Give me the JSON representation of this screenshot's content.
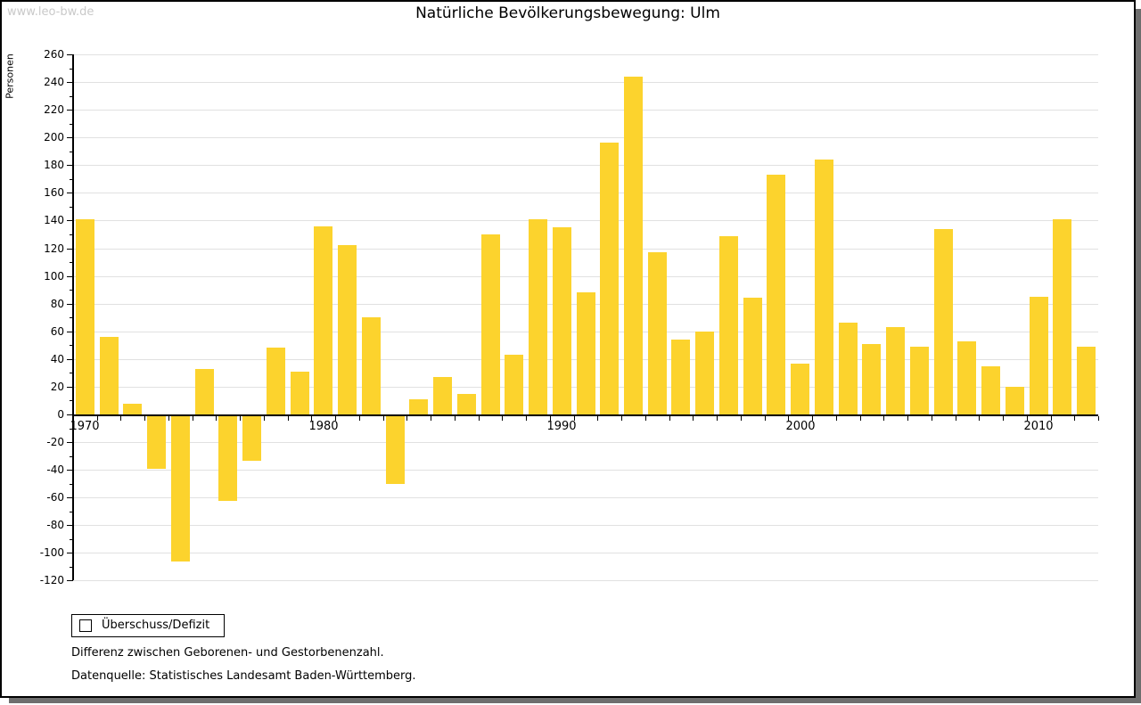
{
  "watermark": "www.leo-bw.de",
  "title": "Natürliche Bevölkerungsbewegung: Ulm",
  "legend": {
    "label": "Überschuss/Defizit"
  },
  "notes": {
    "line1": "Differenz zwischen Geborenen- und Gestorbenenzahl.",
    "line2": "Datenquelle: Statistisches Landesamt Baden-Württemberg."
  },
  "colors": {
    "bar": "#fcd32d",
    "gridline": "#e1e1e1",
    "axis": "#000000",
    "watermark": "#c9c9c9",
    "shadow": "#6e6e6e"
  },
  "chart_data": {
    "type": "bar",
    "title": "Natürliche Bevölkerungsbewegung: Ulm",
    "xlabel": "",
    "ylabel": "Personen",
    "ylim": [
      -120,
      260
    ],
    "ytick_step": 20,
    "ytick_minor_step": 10,
    "grid": true,
    "legend_position": "bottom-left",
    "series_name": "Überschuss/Defizit",
    "x_labeled_ticks": [
      1970,
      1980,
      1990,
      2000,
      2010
    ],
    "categories": [
      1970,
      1971,
      1972,
      1973,
      1974,
      1975,
      1976,
      1977,
      1978,
      1979,
      1980,
      1981,
      1982,
      1983,
      1984,
      1985,
      1986,
      1987,
      1988,
      1989,
      1990,
      1991,
      1992,
      1993,
      1994,
      1995,
      1996,
      1997,
      1998,
      1999,
      2000,
      2001,
      2002,
      2003,
      2004,
      2005,
      2006,
      2007,
      2008,
      2009,
      2010,
      2011,
      2012
    ],
    "values": [
      141,
      56,
      8,
      -38,
      -105,
      33,
      -61,
      -32,
      48,
      31,
      136,
      122,
      70,
      -49,
      11,
      27,
      15,
      130,
      43,
      141,
      135,
      88,
      196,
      244,
      117,
      54,
      60,
      129,
      84,
      173,
      37,
      184,
      66,
      51,
      63,
      49,
      134,
      53,
      35,
      20,
      85,
      141,
      49
    ]
  }
}
